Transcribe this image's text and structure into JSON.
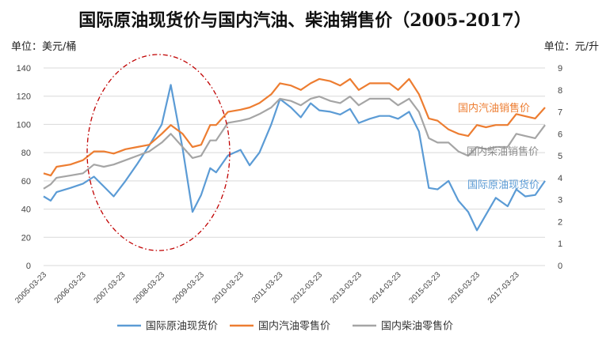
{
  "title": "国际原油现货价与国内汽油、柴油销售价（2005-2017）",
  "left_unit": "单位：美元/桶",
  "right_unit": "单位：元/升",
  "chart_data": {
    "type": "line",
    "title": "国际原油现货价与国内汽油、柴油销售价（2005-2017）",
    "y_left": {
      "min": 0,
      "max": 140,
      "step": 20,
      "label": "单位：美元/桶"
    },
    "y_right": {
      "min": 0,
      "max": 9,
      "step": 1,
      "label": "单位：元/升"
    },
    "x_range": [
      2005.22,
      2017.95
    ],
    "x_tick_labels": [
      "2005-03-23",
      "2006-03-23",
      "2007-03-23",
      "2008-03-23",
      "2009-03-23",
      "2010-03-23",
      "2011-03-23",
      "2012-03-23",
      "2013-03-23",
      "2014-03-23",
      "2015-03-23",
      "2016-03-23",
      "2017-03-23"
    ],
    "x_tick_positions": [
      2005.22,
      2006.22,
      2007.22,
      2008.22,
      2009.22,
      2010.22,
      2011.22,
      2012.22,
      2013.22,
      2014.22,
      2015.22,
      2016.22,
      2017.22
    ],
    "series": [
      {
        "name": "国际原油现货价",
        "axis": "left",
        "color": "#5b9bd5",
        "annotation": "国际原油现货价",
        "x": [
          2005.22,
          2005.4,
          2005.55,
          2005.9,
          2006.22,
          2006.5,
          2006.75,
          2007.0,
          2007.3,
          2007.6,
          2007.9,
          2008.22,
          2008.45,
          2008.75,
          2009.0,
          2009.22,
          2009.45,
          2009.6,
          2009.9,
          2010.22,
          2010.45,
          2010.7,
          2011.0,
          2011.22,
          2011.5,
          2011.75,
          2012.0,
          2012.22,
          2012.5,
          2012.75,
          2013.0,
          2013.22,
          2013.5,
          2013.75,
          2014.0,
          2014.22,
          2014.5,
          2014.75,
          2015.0,
          2015.22,
          2015.5,
          2015.75,
          2016.0,
          2016.22,
          2016.45,
          2016.7,
          2017.0,
          2017.22,
          2017.45,
          2017.7,
          2017.95
        ],
        "values": [
          49,
          46,
          52,
          55,
          58,
          63,
          56,
          49,
          60,
          72,
          85,
          100,
          128,
          83,
          38,
          50,
          69,
          66,
          78,
          82,
          71,
          80,
          100,
          118,
          112,
          105,
          115,
          110,
          109,
          107,
          111,
          101,
          104,
          106,
          106,
          104,
          109,
          95,
          55,
          54,
          60,
          46,
          38,
          25,
          36,
          48,
          42,
          54,
          49,
          50,
          60
        ]
      },
      {
        "name": "国内汽油零售价",
        "axis": "right",
        "color": "#ed7d31",
        "annotation": "国内汽油销售价",
        "x": [
          2005.22,
          2005.4,
          2005.55,
          2005.9,
          2006.22,
          2006.5,
          2006.75,
          2007.0,
          2007.3,
          2007.6,
          2007.9,
          2008.22,
          2008.45,
          2008.75,
          2009.0,
          2009.22,
          2009.45,
          2009.6,
          2009.9,
          2010.22,
          2010.45,
          2010.7,
          2011.0,
          2011.22,
          2011.5,
          2011.75,
          2012.0,
          2012.22,
          2012.5,
          2012.75,
          2013.0,
          2013.22,
          2013.5,
          2013.75,
          2014.0,
          2014.22,
          2014.5,
          2014.75,
          2015.0,
          2015.22,
          2015.5,
          2015.75,
          2016.0,
          2016.22,
          2016.45,
          2016.7,
          2017.0,
          2017.22,
          2017.45,
          2017.7,
          2017.95
        ],
        "values": [
          4.2,
          4.1,
          4.5,
          4.6,
          4.8,
          5.2,
          5.2,
          5.1,
          5.3,
          5.4,
          5.5,
          6.0,
          6.4,
          6.0,
          5.4,
          5.5,
          6.4,
          6.4,
          7.0,
          7.1,
          7.2,
          7.4,
          7.8,
          8.3,
          8.2,
          8.0,
          8.3,
          8.5,
          8.4,
          8.2,
          8.5,
          8.0,
          8.3,
          8.3,
          8.3,
          8.0,
          8.5,
          7.8,
          6.7,
          6.6,
          6.2,
          6.0,
          5.9,
          6.4,
          6.3,
          6.4,
          6.4,
          6.9,
          6.8,
          6.7,
          7.2
        ]
      },
      {
        "name": "国内柴油零售价",
        "axis": "right",
        "color": "#a5a5a5",
        "annotation": "国内柴油销售价",
        "x": [
          2005.22,
          2005.4,
          2005.55,
          2005.9,
          2006.22,
          2006.5,
          2006.75,
          2007.0,
          2007.3,
          2007.6,
          2007.9,
          2008.22,
          2008.45,
          2008.75,
          2009.0,
          2009.22,
          2009.45,
          2009.6,
          2009.9,
          2010.22,
          2010.45,
          2010.7,
          2011.0,
          2011.22,
          2011.5,
          2011.75,
          2012.0,
          2012.22,
          2012.5,
          2012.75,
          2013.0,
          2013.22,
          2013.5,
          2013.75,
          2014.0,
          2014.22,
          2014.5,
          2014.75,
          2015.0,
          2015.22,
          2015.5,
          2015.75,
          2016.0,
          2016.22,
          2016.45,
          2016.7,
          2017.0,
          2017.22,
          2017.45,
          2017.7,
          2017.95
        ],
        "values": [
          3.5,
          3.7,
          4.0,
          4.1,
          4.2,
          4.6,
          4.5,
          4.6,
          4.8,
          5.0,
          5.2,
          5.6,
          6.0,
          5.4,
          4.9,
          5.0,
          5.7,
          5.7,
          6.5,
          6.6,
          6.7,
          6.9,
          7.2,
          7.6,
          7.5,
          7.3,
          7.6,
          7.7,
          7.5,
          7.4,
          7.7,
          7.3,
          7.6,
          7.6,
          7.6,
          7.3,
          7.6,
          7.0,
          5.8,
          5.6,
          5.6,
          5.2,
          5.0,
          5.4,
          5.3,
          5.4,
          5.4,
          6.0,
          5.9,
          5.8,
          6.4
        ]
      }
    ],
    "legend": [
      "国际原油现货价",
      "国内汽油零售价",
      "国内柴油零售价"
    ],
    "legend_position": "bottom",
    "highlight": "dash-dot ellipse around 2007-2009 crude price spike"
  }
}
